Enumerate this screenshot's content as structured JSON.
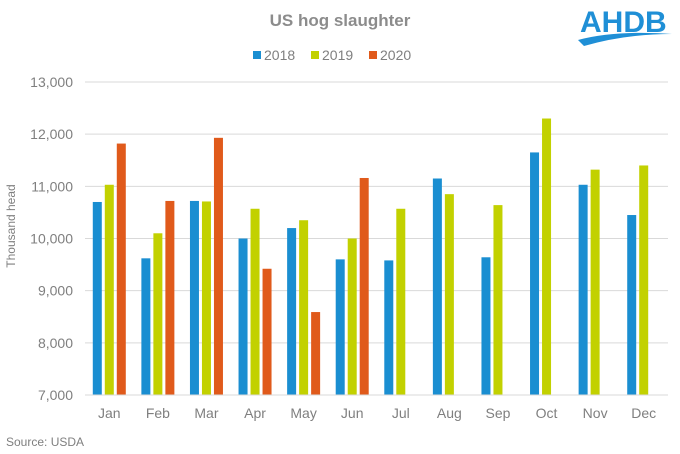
{
  "logo": {
    "text": "AHDB",
    "color": "#1f8fd6"
  },
  "source": "Source:  USDA",
  "colors": {
    "2018": "#1a8ed1",
    "2019": "#c2d100",
    "2020": "#e05a1b",
    "axis_text": "#7f7f7f",
    "grid": "#d9d9d9"
  },
  "chart_data": {
    "type": "bar",
    "title": "US  hog  slaughter",
    "xlabel": "",
    "ylabel": "Thousand  head",
    "ylim": [
      7000,
      13000
    ],
    "yticks": [
      7000,
      8000,
      9000,
      10000,
      11000,
      12000,
      13000
    ],
    "ytick_labels": [
      "7,000",
      "8,000",
      "9,000",
      "10,000",
      "11,000",
      "12,000",
      "13,000"
    ],
    "grid": true,
    "legend_position": "top-center",
    "categories": [
      "Jan",
      "Feb",
      "Mar",
      "Apr",
      "May",
      "Jun",
      "Jul",
      "Aug",
      "Sep",
      "Oct",
      "Nov",
      "Dec"
    ],
    "series": [
      {
        "name": "2018",
        "values": [
          10700,
          9620,
          10720,
          10000,
          10200,
          9600,
          9580,
          11150,
          9640,
          11650,
          11030,
          10450
        ]
      },
      {
        "name": "2019",
        "values": [
          11030,
          10100,
          10710,
          10570,
          10350,
          10000,
          10570,
          10850,
          10640,
          12300,
          11320,
          11400
        ]
      },
      {
        "name": "2020",
        "values": [
          11820,
          10720,
          11930,
          9420,
          8590,
          11160,
          null,
          null,
          null,
          null,
          null,
          null
        ]
      }
    ]
  }
}
